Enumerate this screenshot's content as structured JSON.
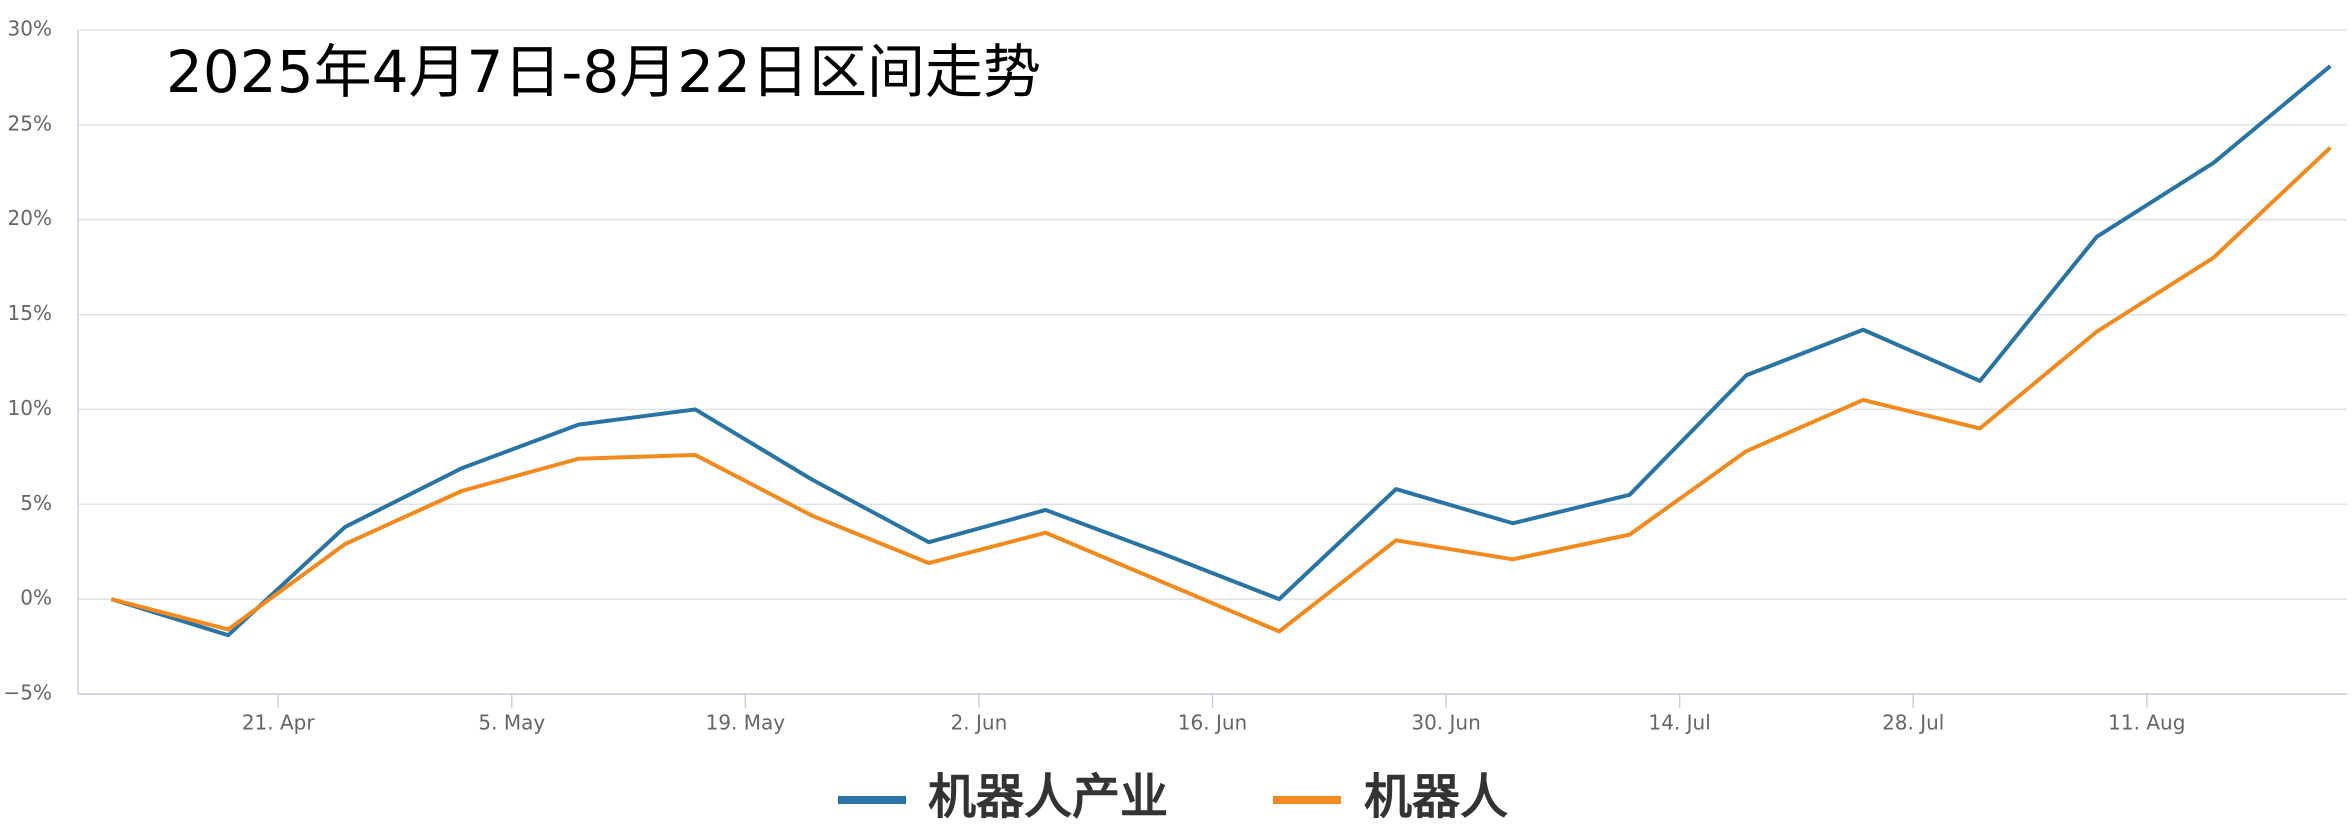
{
  "chart_data": {
    "type": "line",
    "title": "2025年4月7日-8月22日区间走势",
    "x": [
      "2025-04-11",
      "2025-04-18",
      "2025-04-25",
      "2025-05-02",
      "2025-05-09",
      "2025-05-16",
      "2025-05-23",
      "2025-05-30",
      "2025-06-06",
      "2025-06-13",
      "2025-06-20",
      "2025-06-27",
      "2025-07-04",
      "2025-07-11",
      "2025-07-18",
      "2025-07-25",
      "2025-08-01",
      "2025-08-08",
      "2025-08-15",
      "2025-08-22"
    ],
    "series": [
      {
        "name": "机器人产业",
        "color": "#2a74a3",
        "values": [
          0,
          -1.9,
          3.8,
          6.9,
          9.2,
          10.0,
          6.3,
          3.0,
          4.7,
          2.4,
          0,
          5.8,
          4.0,
          5.5,
          11.8,
          14.2,
          11.5,
          19.1,
          23.0,
          28.1
        ]
      },
      {
        "name": "机器人",
        "color": "#f28a1e",
        "values": [
          0,
          -1.6,
          2.9,
          5.7,
          7.4,
          7.6,
          4.4,
          1.9,
          3.5,
          0.9,
          -1.7,
          3.1,
          2.1,
          3.4,
          7.8,
          10.5,
          9.0,
          14.1,
          18.0,
          23.8
        ]
      }
    ],
    "xlim": [
      "2025-04-09",
      "2025-08-23"
    ],
    "xticks": [
      {
        "value": "2025-04-21",
        "label": "21. Apr"
      },
      {
        "value": "2025-05-05",
        "label": "5. May"
      },
      {
        "value": "2025-05-19",
        "label": "19. May"
      },
      {
        "value": "2025-06-02",
        "label": "2. Jun"
      },
      {
        "value": "2025-06-16",
        "label": "16. Jun"
      },
      {
        "value": "2025-06-30",
        "label": "30. Jun"
      },
      {
        "value": "2025-07-14",
        "label": "14. Jul"
      },
      {
        "value": "2025-07-28",
        "label": "28. Jul"
      },
      {
        "value": "2025-08-11",
        "label": "11. Aug"
      }
    ],
    "ylim": [
      -5,
      30
    ],
    "yticks": [
      {
        "value": -5,
        "label": "−5%"
      },
      {
        "value": 0,
        "label": "0%"
      },
      {
        "value": 5,
        "label": "5%"
      },
      {
        "value": 10,
        "label": "10%"
      },
      {
        "value": 15,
        "label": "15%"
      },
      {
        "value": 20,
        "label": "20%"
      },
      {
        "value": 25,
        "label": "25%"
      },
      {
        "value": 30,
        "label": "30%"
      }
    ],
    "grid": true,
    "legend": "bottom"
  }
}
